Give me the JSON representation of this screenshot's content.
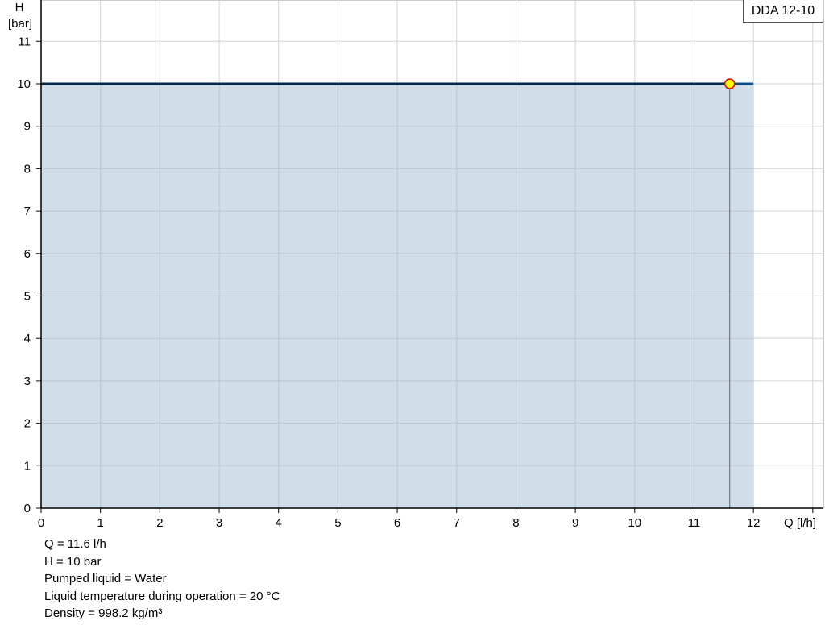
{
  "chart_data": {
    "type": "line",
    "title": "",
    "xlabel": "Q [l/h]",
    "ylabel_line1": "H",
    "ylabel_line2": "[bar]",
    "xlim": [
      0,
      13.2
    ],
    "ylim": [
      0,
      12
    ],
    "x_ticks": [
      0,
      1,
      2,
      3,
      4,
      5,
      6,
      7,
      8,
      9,
      10,
      11,
      12
    ],
    "x_tick_lines": [
      0,
      1,
      2,
      3,
      4,
      5,
      6,
      7,
      8,
      9,
      10,
      11,
      12,
      13
    ],
    "y_ticks": [
      0,
      1,
      2,
      3,
      4,
      5,
      6,
      7,
      8,
      9,
      10,
      11
    ],
    "grid": true,
    "legend": {
      "label": "DDA 12-10",
      "placement": "top-right"
    },
    "series": [
      {
        "name": "DDA 12-10",
        "x": [
          0,
          12
        ],
        "y": [
          10,
          10
        ],
        "color": "#0b4f8a",
        "area_fill": "#cfdbe6"
      }
    ],
    "operating_point": {
      "x": 11.6,
      "y": 10,
      "fill": "#ffff00",
      "stroke": "#e00000"
    }
  },
  "info": {
    "q": "Q = 11.6 l/h",
    "h": "H = 10 bar",
    "liquid": "Pumped liquid = Water",
    "temperature": "Liquid temperature during operation = 20 °C",
    "density": "Density = 998.2 kg/m³"
  }
}
